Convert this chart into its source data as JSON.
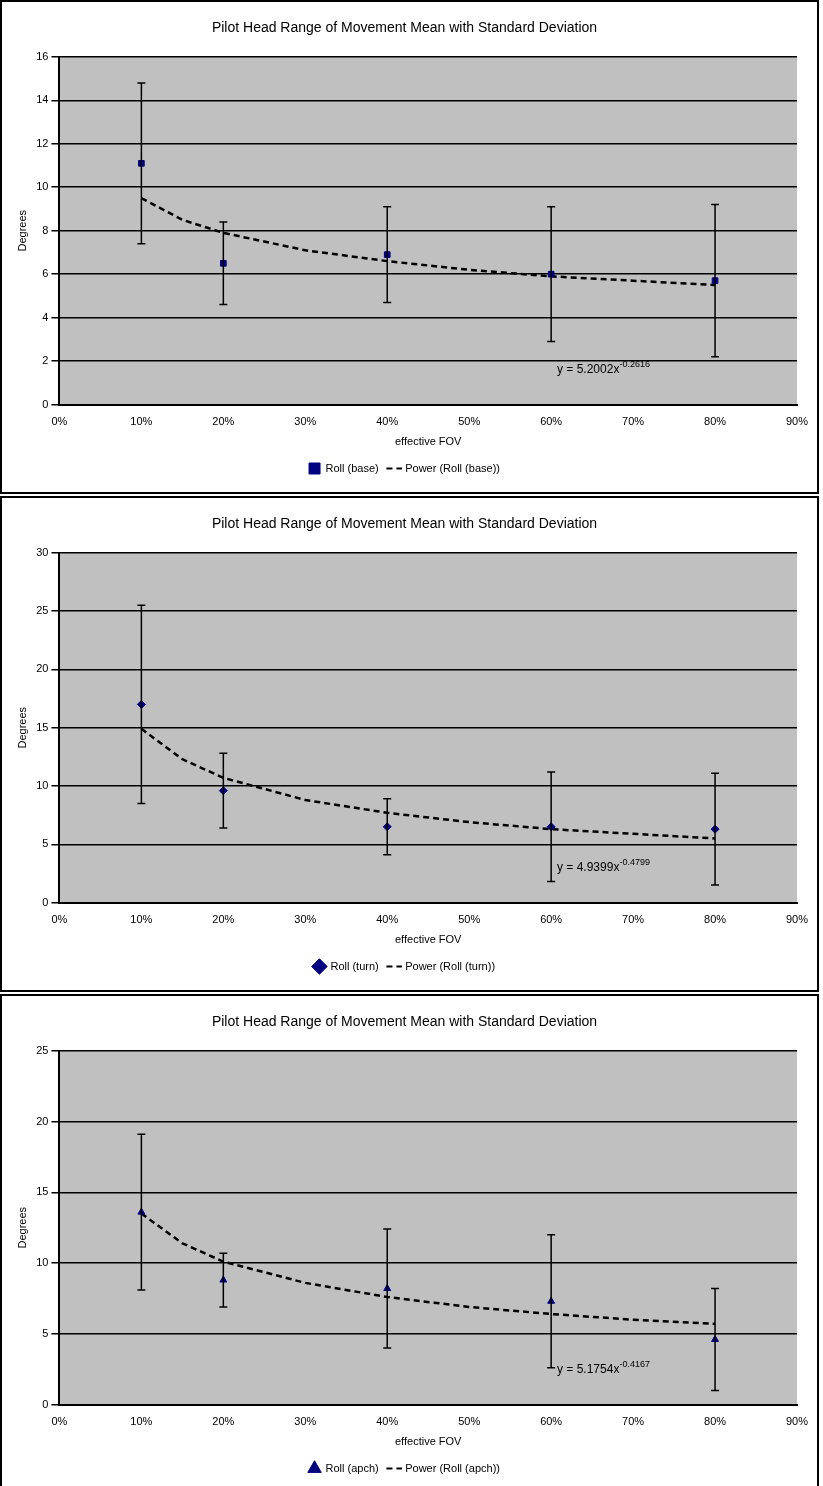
{
  "chart_data": [
    {
      "type": "scatter",
      "title": "Pilot Head Range of Movement Mean with Standard Deviation",
      "xlabel": "effective FOV",
      "ylabel": "Degrees",
      "xlim": [
        0,
        0.9
      ],
      "xticks": [
        {
          "value": 0,
          "label": "0%"
        },
        {
          "value": 0.1,
          "label": "10%"
        },
        {
          "value": 0.2,
          "label": "20%"
        },
        {
          "value": 0.3,
          "label": "30%"
        },
        {
          "value": 0.4,
          "label": "40%"
        },
        {
          "value": 0.5,
          "label": "50%"
        },
        {
          "value": 0.6,
          "label": "60%"
        },
        {
          "value": 0.7,
          "label": "70%"
        },
        {
          "value": 0.8,
          "label": "80%"
        },
        {
          "value": 0.9,
          "label": "90%"
        }
      ],
      "ylim": [
        0,
        16
      ],
      "yticks": [
        0,
        2,
        4,
        6,
        8,
        10,
        12,
        14,
        16
      ],
      "grid": "y",
      "legend": "bottom",
      "series": [
        {
          "name": "Roll (base)",
          "type": "scatter",
          "marker": "square",
          "color": "#000080",
          "x": [
            0.1,
            0.2,
            0.4,
            0.6,
            0.8
          ],
          "values": [
            11.1,
            6.5,
            6.9,
            6.0,
            5.7
          ],
          "errors": [
            3.7,
            1.9,
            2.2,
            3.1,
            3.5
          ]
        },
        {
          "name": "Power (Roll (base))",
          "type": "line",
          "line_style": "dashed",
          "marker": "none",
          "color": "#000000",
          "x": [
            0.1,
            0.15,
            0.2,
            0.3,
            0.4,
            0.5,
            0.6,
            0.7,
            0.8
          ],
          "values": [
            9.5,
            8.5,
            7.9,
            7.1,
            6.6,
            6.2,
            5.9,
            5.7,
            5.5
          ]
        }
      ],
      "annotations": [
        "y = 5.2002x$^{-0.2616}$"
      ]
    },
    {
      "type": "scatter",
      "title": "Pilot Head Range of Movement Mean with Standard Deviation",
      "xlabel": "effective FOV",
      "ylabel": "Degrees",
      "xlim": [
        0,
        0.9
      ],
      "xticks": [
        {
          "value": 0,
          "label": "0%"
        },
        {
          "value": 0.1,
          "label": "10%"
        },
        {
          "value": 0.2,
          "label": "20%"
        },
        {
          "value": 0.3,
          "label": "30%"
        },
        {
          "value": 0.4,
          "label": "40%"
        },
        {
          "value": 0.5,
          "label": "50%"
        },
        {
          "value": 0.6,
          "label": "60%"
        },
        {
          "value": 0.7,
          "label": "70%"
        },
        {
          "value": 0.8,
          "label": "80%"
        },
        {
          "value": 0.9,
          "label": "90%"
        }
      ],
      "ylim": [
        0,
        30
      ],
      "yticks": [
        0,
        5,
        10,
        15,
        20,
        25,
        30
      ],
      "grid": "y",
      "legend": "bottom",
      "series": [
        {
          "name": "Roll (turn)",
          "type": "scatter",
          "marker": "diamond",
          "color": "#000080",
          "x": [
            0.1,
            0.2,
            0.4,
            0.6,
            0.8
          ],
          "values": [
            17,
            9.6,
            6.5,
            6.5,
            6.3
          ],
          "errors": [
            8.5,
            3.2,
            2.4,
            4.7,
            4.8
          ]
        },
        {
          "name": "Power (Roll (turn))",
          "type": "line",
          "line_style": "dashed",
          "marker": "none",
          "color": "#000000",
          "x": [
            0.1,
            0.15,
            0.2,
            0.3,
            0.4,
            0.5,
            0.6,
            0.7,
            0.8
          ],
          "values": [
            14.9,
            12.3,
            10.7,
            8.8,
            7.7,
            6.9,
            6.3,
            5.9,
            5.5
          ]
        }
      ],
      "annotations": [
        "y = 4.9399x$^{-0.4799}$"
      ]
    },
    {
      "type": "scatter",
      "title": "Pilot Head Range of Movement Mean with Standard Deviation",
      "xlabel": "effective FOV",
      "ylabel": "Degrees",
      "xlim": [
        0,
        0.9
      ],
      "xticks": [
        {
          "value": 0,
          "label": "0%"
        },
        {
          "value": 0.1,
          "label": "10%"
        },
        {
          "value": 0.2,
          "label": "20%"
        },
        {
          "value": 0.3,
          "label": "30%"
        },
        {
          "value": 0.4,
          "label": "40%"
        },
        {
          "value": 0.5,
          "label": "50%"
        },
        {
          "value": 0.6,
          "label": "60%"
        },
        {
          "value": 0.7,
          "label": "70%"
        },
        {
          "value": 0.8,
          "label": "80%"
        },
        {
          "value": 0.9,
          "label": "90%"
        }
      ],
      "ylim": [
        0,
        25
      ],
      "yticks": [
        0,
        5,
        10,
        15,
        20,
        25
      ],
      "grid": "y",
      "legend": "bottom",
      "series": [
        {
          "name": "Roll (apch)",
          "type": "scatter",
          "marker": "triangle",
          "color": "#000080",
          "x": [
            0.1,
            0.2,
            0.4,
            0.6,
            0.8
          ],
          "values": [
            13.6,
            8.8,
            8.2,
            7.3,
            4.6
          ],
          "errors": [
            5.5,
            1.9,
            4.2,
            4.7,
            3.6
          ]
        },
        {
          "name": "Power (Roll (apch))",
          "type": "line",
          "line_style": "dashed",
          "marker": "none",
          "color": "#000000",
          "x": [
            0.1,
            0.15,
            0.2,
            0.3,
            0.4,
            0.5,
            0.6,
            0.7,
            0.8
          ],
          "values": [
            13.5,
            11.4,
            10.1,
            8.6,
            7.6,
            6.9,
            6.4,
            6.0,
            5.7
          ]
        }
      ],
      "annotations": [
        "y = 5.1754x$^{-0.4167}$"
      ]
    }
  ]
}
